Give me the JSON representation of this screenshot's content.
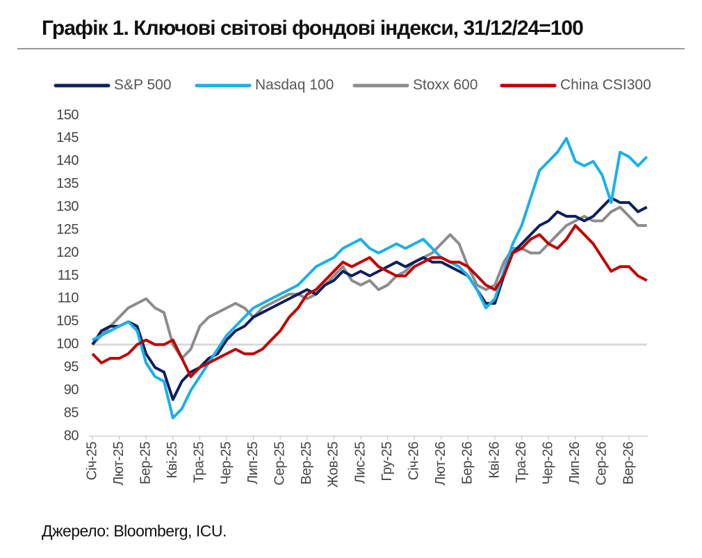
{
  "chart_data": {
    "type": "line",
    "title": "Графік 1. Ключові світові фондові індекси, 31/12/24=100",
    "source": "Джерело: Bloomberg, ICU.",
    "categories": [
      "Січ-25",
      null,
      null,
      "Лют-25",
      null,
      null,
      "Бер-25",
      null,
      null,
      "Кві-25",
      null,
      null,
      "Тра-25",
      null,
      null,
      "Чер-25",
      null,
      null,
      "Лип-25",
      null,
      null,
      "Сер-25",
      null,
      null,
      "Вер-25",
      null,
      null,
      "Жов-25",
      null,
      null,
      "Лис-25",
      null,
      null,
      "Гру-25",
      null,
      null,
      "Січ-26",
      null,
      null,
      "Лют-26",
      null,
      null,
      "Бер-26",
      null,
      null,
      "Кві-26",
      null,
      null,
      "Тра-26",
      null,
      null,
      "Чер-26",
      null,
      null,
      "Лип-26",
      null,
      null,
      "Сер-26",
      null,
      null,
      "Вер-26",
      null,
      null
    ],
    "series": [
      {
        "name": "S&P 500",
        "color": "#0d1f5c",
        "values": [
          100,
          103,
          104,
          104,
          105,
          104,
          98,
          95,
          94,
          88,
          92,
          94,
          95,
          97,
          98,
          101,
          103,
          104,
          106,
          107,
          108,
          109,
          110,
          111,
          112,
          111,
          113,
          114,
          116,
          115,
          116,
          115,
          116,
          117,
          118,
          117,
          118,
          119,
          118,
          118,
          117,
          116,
          115,
          112,
          109,
          109,
          115,
          120,
          122,
          124,
          126,
          127,
          129,
          128,
          128,
          127,
          128,
          130,
          132,
          131,
          131,
          129,
          130
        ]
      },
      {
        "name": "Nasdaq 100",
        "color": "#19b0ea",
        "values": [
          101,
          102,
          103,
          104,
          105,
          103,
          96,
          93,
          92,
          84,
          86,
          90,
          93,
          96,
          99,
          102,
          104,
          106,
          108,
          109,
          110,
          111,
          112,
          113,
          115,
          117,
          118,
          119,
          121,
          122,
          123,
          121,
          120,
          121,
          122,
          121,
          122,
          123,
          121,
          119,
          118,
          117,
          115,
          112,
          108,
          110,
          116,
          122,
          126,
          132,
          138,
          140,
          142,
          145,
          140,
          139,
          140,
          137,
          131,
          142,
          141,
          139,
          141
        ]
      },
      {
        "name": "Stoxx 600",
        "color": "#8c8c8c",
        "values": [
          100,
          102,
          104,
          106,
          108,
          109,
          110,
          108,
          107,
          100,
          97,
          99,
          104,
          106,
          107,
          108,
          109,
          108,
          106,
          108,
          109,
          110,
          111,
          111,
          110,
          111,
          113,
          115,
          117,
          114,
          113,
          114,
          112,
          113,
          115,
          116,
          118,
          119,
          120,
          122,
          124,
          122,
          117,
          113,
          112,
          113,
          118,
          121,
          121,
          120,
          120,
          122,
          124,
          126,
          127,
          128,
          127,
          127,
          129,
          130,
          128,
          126,
          126
        ]
      },
      {
        "name": "China CSI300",
        "color": "#c00000",
        "values": [
          98,
          96,
          97,
          97,
          98,
          100,
          101,
          100,
          100,
          101,
          97,
          93,
          95,
          96,
          97,
          98,
          99,
          98,
          98,
          99,
          101,
          103,
          106,
          108,
          111,
          112,
          114,
          116,
          118,
          117,
          118,
          119,
          117,
          116,
          115,
          115,
          117,
          118,
          119,
          119,
          118,
          118,
          117,
          115,
          113,
          112,
          115,
          120,
          121,
          123,
          124,
          122,
          121,
          123,
          126,
          124,
          122,
          119,
          116,
          117,
          117,
          115,
          114
        ]
      }
    ],
    "ylim": [
      80,
      150
    ],
    "yticks": [
      80,
      85,
      90,
      95,
      100,
      105,
      110,
      115,
      120,
      125,
      130,
      135,
      140,
      145,
      150
    ],
    "reference_line": 100
  }
}
